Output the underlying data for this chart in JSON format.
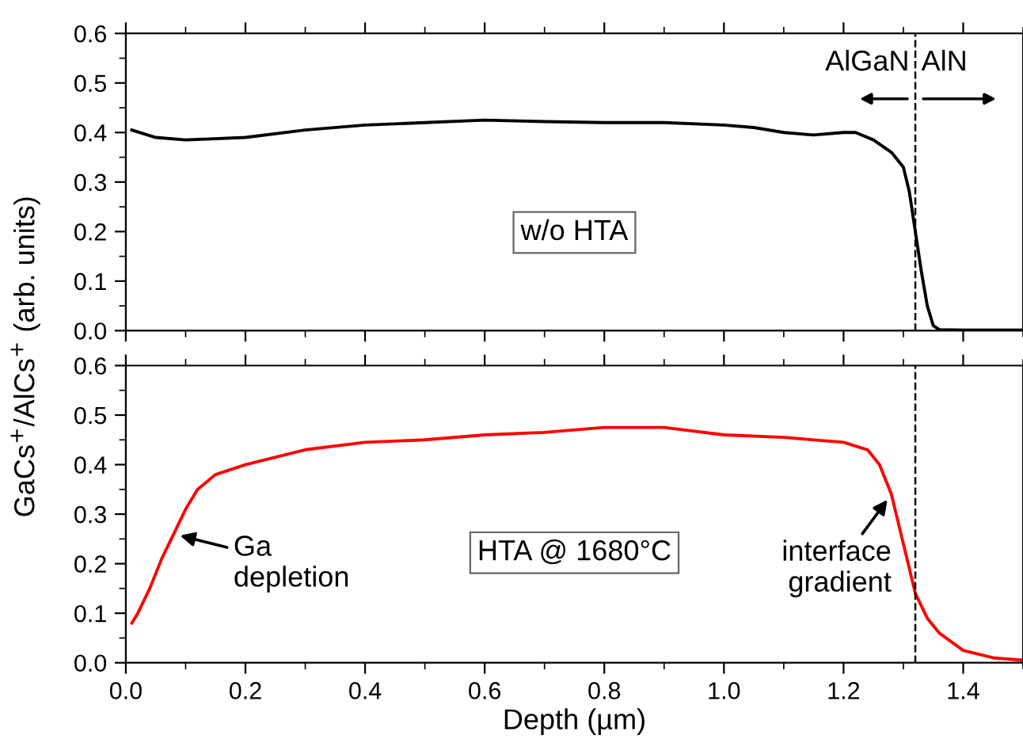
{
  "chart_data": [
    {
      "type": "line",
      "ylabel": "GaCs$^{+}$/AlCs$^{+}$ (arb. units)",
      "tick_labels": "y",
      "x": [
        0.01,
        0.05,
        0.1,
        0.2,
        0.3,
        0.4,
        0.5,
        0.6,
        0.7,
        0.8,
        0.9,
        1.0,
        1.05,
        1.1,
        1.15,
        1.2,
        1.22,
        1.25,
        1.28,
        1.3,
        1.31,
        1.32,
        1.33,
        1.34,
        1.35,
        1.36,
        1.4,
        1.5
      ],
      "series": [
        {
          "color": "#000000",
          "values": [
            0.405,
            0.39,
            0.385,
            0.39,
            0.405,
            0.415,
            0.42,
            0.425,
            0.422,
            0.42,
            0.42,
            0.415,
            0.41,
            0.4,
            0.395,
            0.4,
            0.4,
            0.385,
            0.36,
            0.33,
            0.28,
            0.2,
            0.12,
            0.05,
            0.01,
            0.002,
            0.001,
            0.001
          ]
        }
      ],
      "xlim": [
        0,
        1.5
      ],
      "xticks": [
        {
          "value": 0,
          "label": null
        },
        {
          "value": 0.2,
          "label": null
        },
        {
          "value": 0.4,
          "label": null
        },
        {
          "value": 0.6,
          "label": null
        },
        {
          "value": 0.8,
          "label": null
        },
        {
          "value": 1.0,
          "label": null
        },
        {
          "value": 1.2,
          "label": null
        },
        {
          "value": 1.4,
          "label": null
        }
      ],
      "ylim": [
        0,
        0.6
      ],
      "yticks": [
        {
          "value": 0,
          "label": "0.0"
        },
        {
          "value": 0.1,
          "label": "0.1"
        },
        {
          "value": 0.2,
          "label": "0.2"
        },
        {
          "value": 0.3,
          "label": "0.3"
        },
        {
          "value": 0.4,
          "label": "0.4"
        },
        {
          "value": 0.5,
          "label": "0.5"
        },
        {
          "value": 0.6,
          "label": "0.6"
        }
      ],
      "ref_lines": [
        {
          "axis": "x",
          "value": 1.32,
          "color": "#000000",
          "line_style": "dashed"
        }
      ],
      "annotations": [
        "w/o HTA",
        "AlGaN",
        "AlN"
      ],
      "grid": false,
      "legend": false,
      "marker": "none",
      "line_style": "solid"
    },
    {
      "type": "line",
      "xlabel": "Depth (µm)",
      "x": [
        0.01,
        0.02,
        0.04,
        0.06,
        0.08,
        0.1,
        0.12,
        0.15,
        0.2,
        0.3,
        0.4,
        0.5,
        0.6,
        0.7,
        0.8,
        0.9,
        1.0,
        1.1,
        1.2,
        1.24,
        1.26,
        1.28,
        1.3,
        1.32,
        1.34,
        1.36,
        1.4,
        1.45,
        1.5
      ],
      "series": [
        {
          "color": "#ff0000",
          "values": [
            0.08,
            0.1,
            0.15,
            0.21,
            0.26,
            0.31,
            0.35,
            0.38,
            0.4,
            0.43,
            0.445,
            0.45,
            0.46,
            0.465,
            0.475,
            0.475,
            0.46,
            0.455,
            0.445,
            0.43,
            0.4,
            0.34,
            0.24,
            0.14,
            0.09,
            0.06,
            0.025,
            0.01,
            0.005
          ]
        }
      ],
      "xlim": [
        0,
        1.5
      ],
      "xticks": [
        {
          "value": 0,
          "label": "0.0"
        },
        {
          "value": 0.2,
          "label": "0.2"
        },
        {
          "value": 0.4,
          "label": "0.4"
        },
        {
          "value": 0.6,
          "label": "0.6"
        },
        {
          "value": 0.8,
          "label": "0.8"
        },
        {
          "value": 1.0,
          "label": "1.0"
        },
        {
          "value": 1.2,
          "label": "1.2"
        },
        {
          "value": 1.4,
          "label": "1.4"
        }
      ],
      "ylim": [
        0,
        0.6
      ],
      "yticks": [
        {
          "value": 0,
          "label": "0.0"
        },
        {
          "value": 0.1,
          "label": "0.1"
        },
        {
          "value": 0.2,
          "label": "0.2"
        },
        {
          "value": 0.3,
          "label": "0.3"
        },
        {
          "value": 0.4,
          "label": "0.4"
        },
        {
          "value": 0.5,
          "label": "0.5"
        },
        {
          "value": 0.6,
          "label": "0.6"
        }
      ],
      "ref_lines": [
        {
          "axis": "x",
          "value": 1.32,
          "color": "#000000",
          "line_style": "dashed"
        }
      ],
      "annotations": [
        "HTA @ 1680°C",
        {
          "text": "Ga\ndepletion",
          "x": 0.08,
          "y": 0.26
        },
        {
          "text": "interface\ngradient",
          "x": 1.28,
          "y": 0.34
        }
      ],
      "grid": false,
      "legend": false,
      "marker": "none",
      "line_style": "solid"
    }
  ]
}
